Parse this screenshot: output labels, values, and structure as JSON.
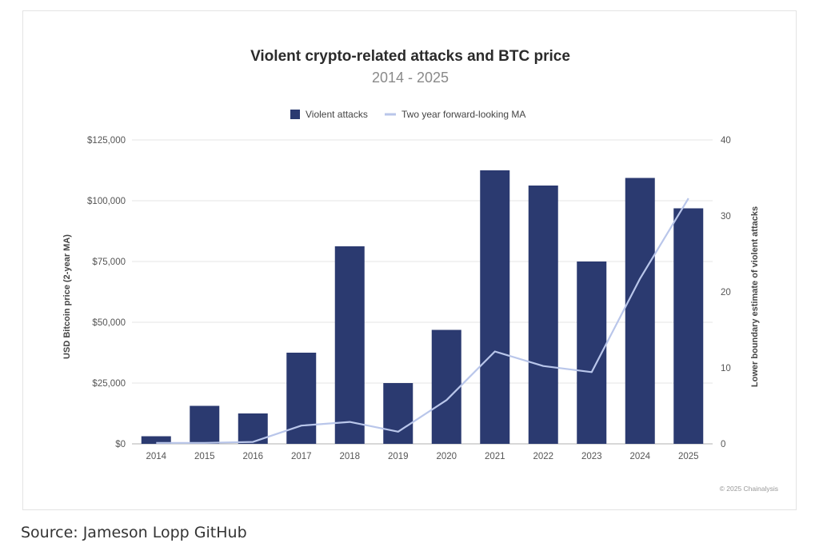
{
  "chart_data": {
    "type": "bar+line",
    "title": "Violent crypto-related attacks and BTC price",
    "subtitle": "2014 - 2025",
    "categories": [
      "2014",
      "2015",
      "2016",
      "2017",
      "2018",
      "2019",
      "2020",
      "2021",
      "2022",
      "2023",
      "2024",
      "2025"
    ],
    "series": [
      {
        "name": "Violent attacks",
        "type": "bar",
        "axis": "right",
        "color": "#2b3a70",
        "values": [
          1,
          5,
          4,
          12,
          26,
          8,
          15,
          36,
          34,
          24,
          35,
          31
        ]
      },
      {
        "name": "Two year forward-looking MA",
        "type": "line",
        "axis": "left",
        "color": "#b9c6ea",
        "values": [
          400,
          400,
          800,
          7500,
          9000,
          5000,
          18000,
          38000,
          32000,
          29500,
          68000,
          101000
        ]
      }
    ],
    "y_left": {
      "label": "USD Bitcoin price (2-year MA)",
      "ylim": [
        0,
        125000
      ],
      "ticks": [
        "$0",
        "$25,000",
        "$50,000",
        "$75,000",
        "$100,000",
        "$125,000"
      ],
      "tick_values": [
        0,
        25000,
        50000,
        75000,
        100000,
        125000
      ]
    },
    "y_right": {
      "label": "Lower boundary estimate of violent attacks",
      "ylim": [
        0,
        40
      ],
      "ticks": [
        "0",
        "10",
        "20",
        "30",
        "40"
      ],
      "tick_values": [
        0,
        10,
        20,
        30,
        40
      ]
    },
    "legend_position": "top-center",
    "grid": true,
    "copyright": "© 2025 Chainalysis"
  },
  "footer": {
    "source": "Source: Jameson Lopp GitHub"
  }
}
